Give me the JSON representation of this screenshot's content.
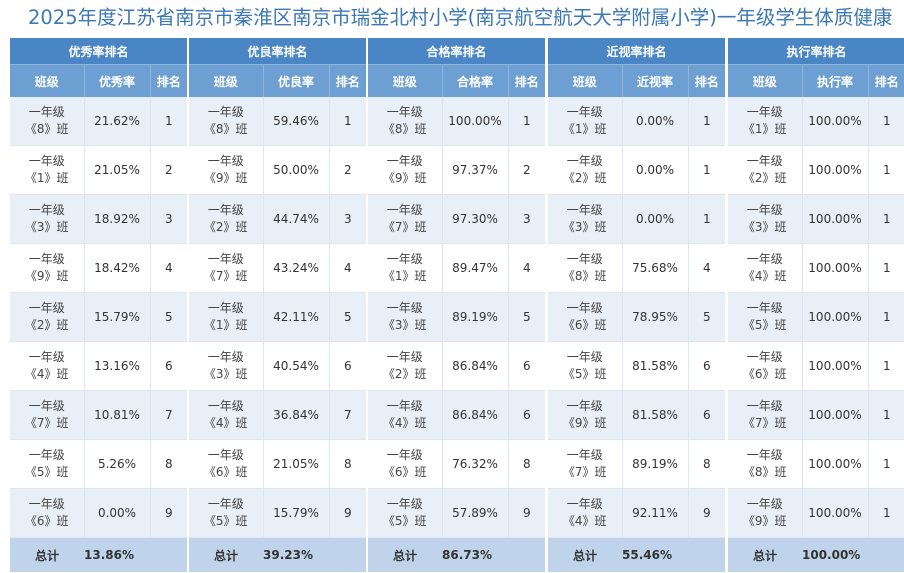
{
  "title": "2025年度江苏省南京市秦淮区南京市瑞金北村小学(南京航空航天大学附属小学)一年级学生体质健康",
  "total_label": "总计",
  "class_col": "班级",
  "rank_col": "排名",
  "grade_prefix": "一年级",
  "tables": [
    {
      "title": "优秀率排名",
      "metric_col": "优秀率",
      "rows": [
        {
          "cls": "《8》班",
          "value": "21.62%",
          "rank": "1"
        },
        {
          "cls": "《1》班",
          "value": "21.05%",
          "rank": "2"
        },
        {
          "cls": "《3》班",
          "value": "18.92%",
          "rank": "3"
        },
        {
          "cls": "《9》班",
          "value": "18.42%",
          "rank": "4"
        },
        {
          "cls": "《2》班",
          "value": "15.79%",
          "rank": "5"
        },
        {
          "cls": "《4》班",
          "value": "13.16%",
          "rank": "6"
        },
        {
          "cls": "《7》班",
          "value": "10.81%",
          "rank": "7"
        },
        {
          "cls": "《5》班",
          "value": "5.26%",
          "rank": "8"
        },
        {
          "cls": "《6》班",
          "value": "0.00%",
          "rank": "9"
        }
      ],
      "total": "13.86%"
    },
    {
      "title": "优良率排名",
      "metric_col": "优良率",
      "rows": [
        {
          "cls": "《8》班",
          "value": "59.46%",
          "rank": "1"
        },
        {
          "cls": "《9》班",
          "value": "50.00%",
          "rank": "2"
        },
        {
          "cls": "《2》班",
          "value": "44.74%",
          "rank": "3"
        },
        {
          "cls": "《7》班",
          "value": "43.24%",
          "rank": "4"
        },
        {
          "cls": "《1》班",
          "value": "42.11%",
          "rank": "5"
        },
        {
          "cls": "《3》班",
          "value": "40.54%",
          "rank": "6"
        },
        {
          "cls": "《4》班",
          "value": "36.84%",
          "rank": "7"
        },
        {
          "cls": "《6》班",
          "value": "21.05%",
          "rank": "8"
        },
        {
          "cls": "《5》班",
          "value": "15.79%",
          "rank": "9"
        }
      ],
      "total": "39.23%"
    },
    {
      "title": "合格率排名",
      "metric_col": "合格率",
      "rows": [
        {
          "cls": "《8》班",
          "value": "100.00%",
          "rank": "1"
        },
        {
          "cls": "《9》班",
          "value": "97.37%",
          "rank": "2"
        },
        {
          "cls": "《7》班",
          "value": "97.30%",
          "rank": "3"
        },
        {
          "cls": "《1》班",
          "value": "89.47%",
          "rank": "4"
        },
        {
          "cls": "《3》班",
          "value": "89.19%",
          "rank": "5"
        },
        {
          "cls": "《2》班",
          "value": "86.84%",
          "rank": "6"
        },
        {
          "cls": "《4》班",
          "value": "86.84%",
          "rank": "6"
        },
        {
          "cls": "《6》班",
          "value": "76.32%",
          "rank": "8"
        },
        {
          "cls": "《5》班",
          "value": "57.89%",
          "rank": "9"
        }
      ],
      "total": "86.73%"
    },
    {
      "title": "近视率排名",
      "metric_col": "近视率",
      "rows": [
        {
          "cls": "《1》班",
          "value": "0.00%",
          "rank": "1"
        },
        {
          "cls": "《2》班",
          "value": "0.00%",
          "rank": "1"
        },
        {
          "cls": "《3》班",
          "value": "0.00%",
          "rank": "1"
        },
        {
          "cls": "《8》班",
          "value": "75.68%",
          "rank": "4"
        },
        {
          "cls": "《6》班",
          "value": "78.95%",
          "rank": "5"
        },
        {
          "cls": "《5》班",
          "value": "81.58%",
          "rank": "6"
        },
        {
          "cls": "《9》班",
          "value": "81.58%",
          "rank": "6"
        },
        {
          "cls": "《7》班",
          "value": "89.19%",
          "rank": "8"
        },
        {
          "cls": "《4》班",
          "value": "92.11%",
          "rank": "9"
        }
      ],
      "total": "55.46%"
    },
    {
      "title": "执行率排名",
      "metric_col": "执行率",
      "rows": [
        {
          "cls": "《1》班",
          "value": "100.00%",
          "rank": "1"
        },
        {
          "cls": "《2》班",
          "value": "100.00%",
          "rank": "1"
        },
        {
          "cls": "《3》班",
          "value": "100.00%",
          "rank": "1"
        },
        {
          "cls": "《4》班",
          "value": "100.00%",
          "rank": "1"
        },
        {
          "cls": "《5》班",
          "value": "100.00%",
          "rank": "1"
        },
        {
          "cls": "《6》班",
          "value": "100.00%",
          "rank": "1"
        },
        {
          "cls": "《7》班",
          "value": "100.00%",
          "rank": "1"
        },
        {
          "cls": "《8》班",
          "value": "100.00%",
          "rank": "1"
        },
        {
          "cls": "《9》班",
          "value": "100.00%",
          "rank": "1"
        }
      ],
      "total": "100.00%"
    }
  ]
}
